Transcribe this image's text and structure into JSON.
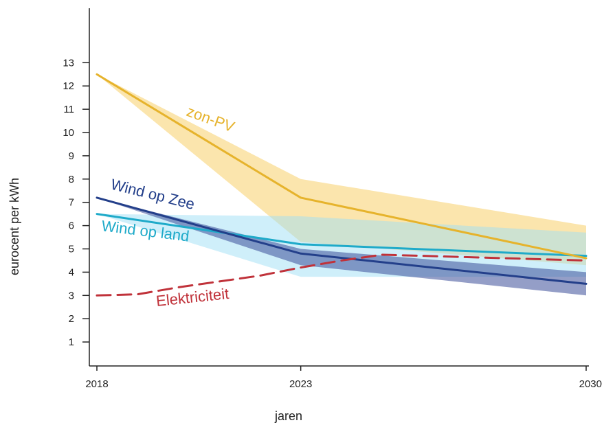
{
  "chart_data": {
    "type": "line",
    "xlabel": "jaren",
    "ylabel": "eurocent per kWh",
    "x_ticks": [
      "2018",
      "2023",
      "2030"
    ],
    "y_ticks": [
      "1",
      "2",
      "3",
      "4",
      "5",
      "6",
      "7",
      "8",
      "9",
      "10",
      "11",
      "12",
      "13"
    ],
    "xlim": [
      2018,
      2030
    ],
    "ylim": [
      0,
      13
    ],
    "grid": false,
    "legend": "inline labels",
    "series": [
      {
        "name": "zon-PV",
        "color": "#e6b32c",
        "band_color": "#f7cf6a",
        "x": [
          2018,
          2023,
          2030
        ],
        "values": [
          12.5,
          7.2,
          4.6
        ],
        "band_upper": [
          12.5,
          8.0,
          6.0
        ],
        "band_lower": [
          12.5,
          5.3,
          4.3
        ]
      },
      {
        "name": "Wind op Zee",
        "color": "#233f8a",
        "band_color": "#3d4f99",
        "x": [
          2018,
          2023,
          2030
        ],
        "values": [
          7.2,
          4.8,
          3.5
        ],
        "band_upper": [
          7.2,
          5.0,
          4.0
        ],
        "band_lower": [
          7.2,
          4.3,
          3.0
        ]
      },
      {
        "name": "Wind op land",
        "color": "#1eaac9",
        "band_color": "#9fdff5",
        "x": [
          2018,
          2023,
          2030
        ],
        "values": [
          6.5,
          5.2,
          4.7
        ],
        "band_upper": [
          6.5,
          6.4,
          5.7
        ],
        "band_lower": [
          6.5,
          3.8,
          3.8
        ]
      },
      {
        "name": "Elektriciteit",
        "color": "#c0323a",
        "style": "dashed",
        "x": [
          2018,
          2019,
          2020,
          2021,
          2022,
          2023,
          2024,
          2025,
          2026,
          2027,
          2028,
          2029,
          2030
        ],
        "values": [
          3.0,
          3.05,
          3.35,
          3.6,
          3.85,
          4.2,
          4.5,
          4.75,
          4.7,
          4.65,
          4.6,
          4.55,
          4.5
        ]
      }
    ]
  }
}
